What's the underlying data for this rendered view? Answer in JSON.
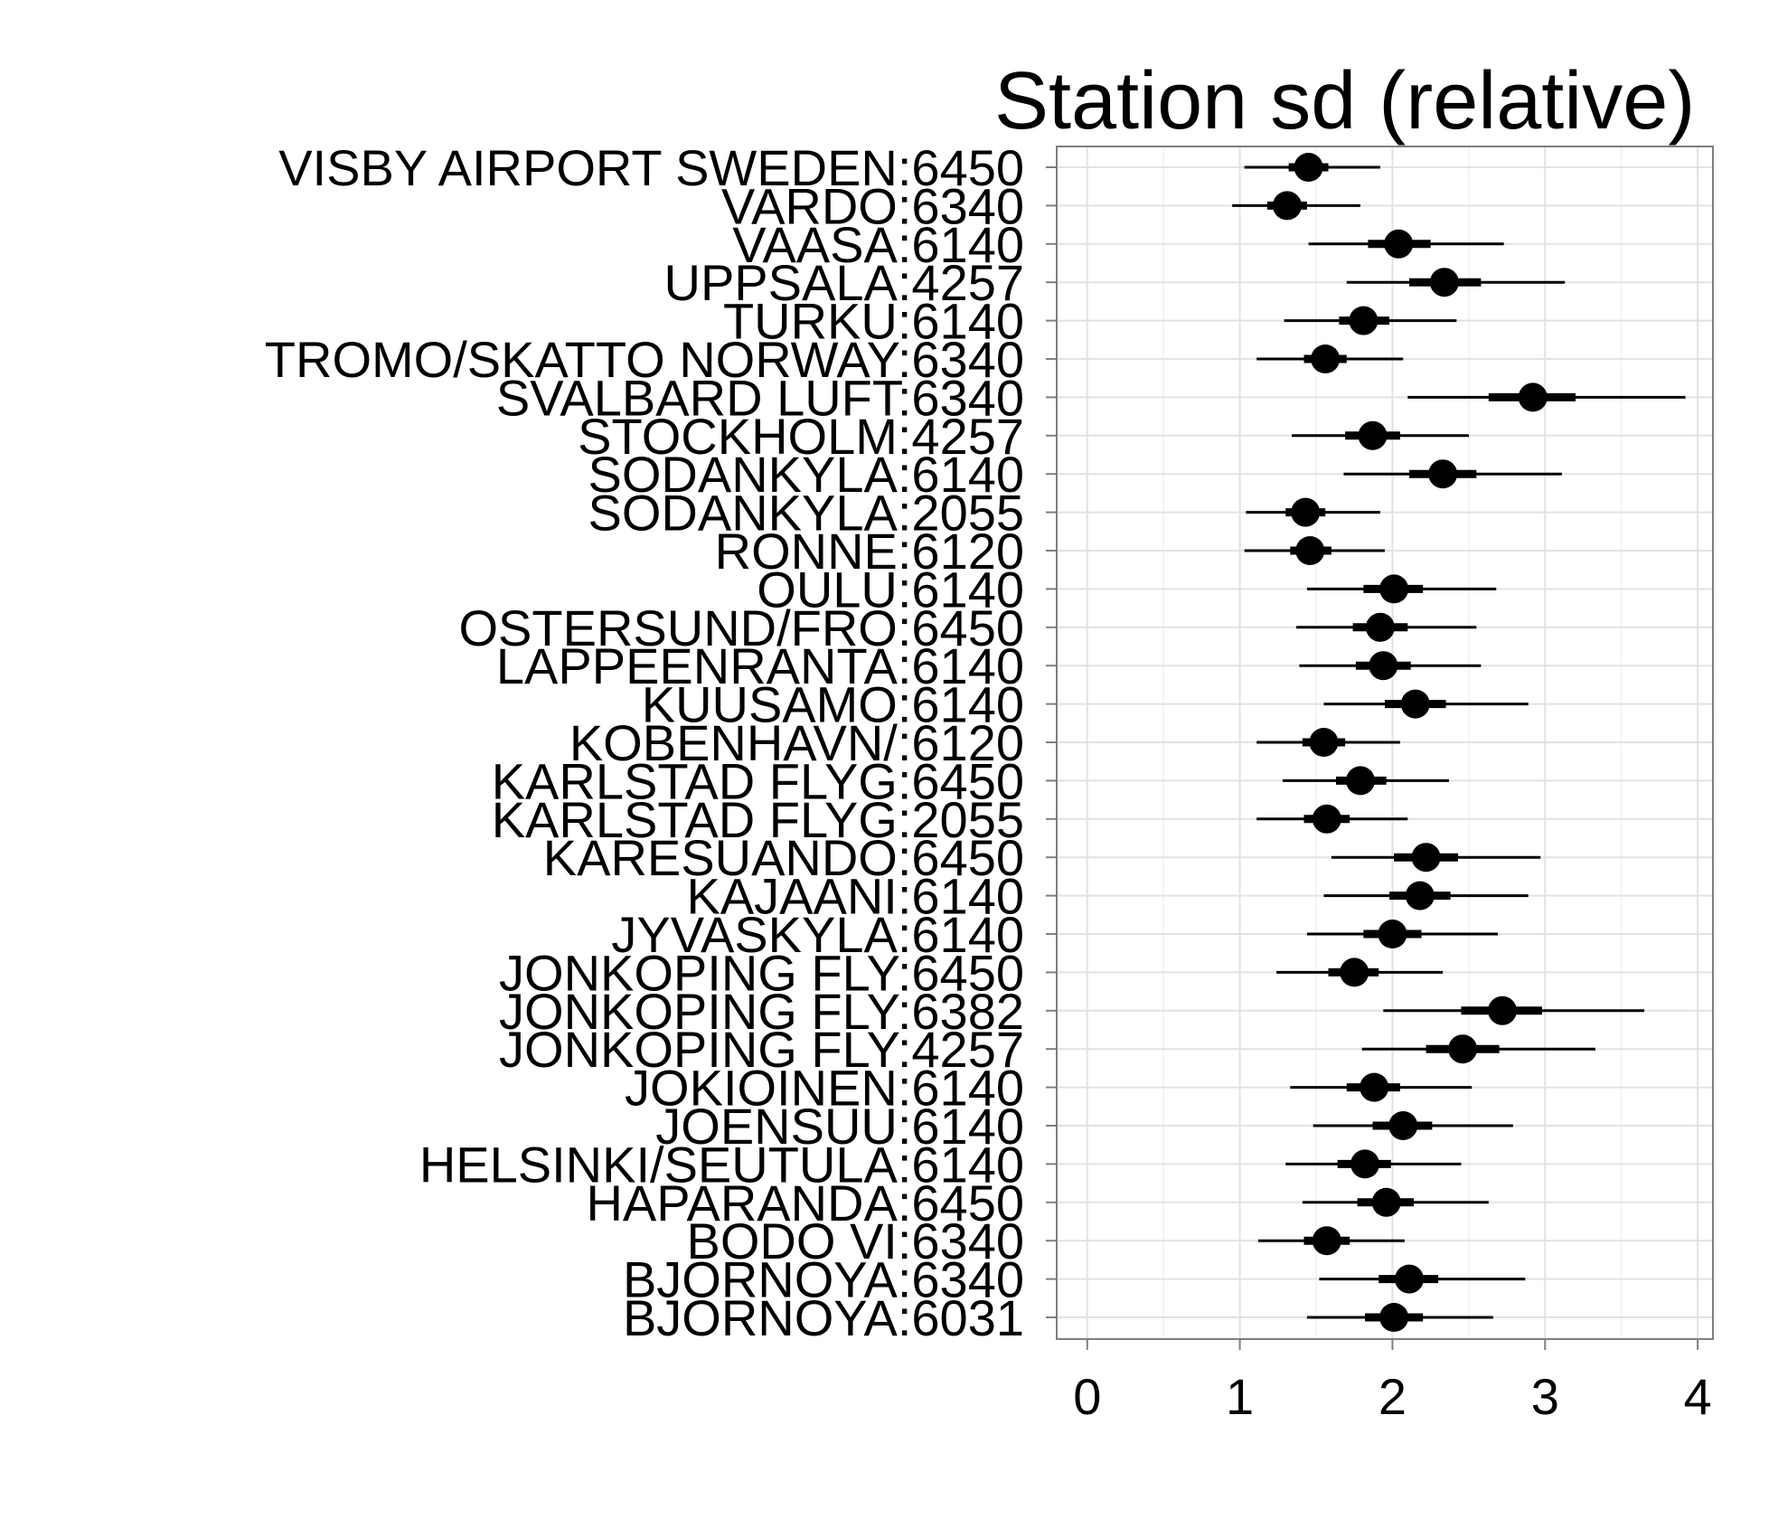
{
  "chart_data": {
    "type": "scatter",
    "title": "Station sd (relative)",
    "xlim": [
      -0.2,
      4.1
    ],
    "x_ticks": [
      "0",
      "1",
      "2",
      "3",
      "4"
    ],
    "grid": true,
    "categories": [
      "VISBY AIRPORT SWEDEN:6450",
      "VARDO:6340",
      "VAASA:6140",
      "UPPSALA:4257",
      "TURKU:6140",
      "TROMO/SKATTO NORWAY:6340",
      "SVALBARD LUFT:6340",
      "STOCKHOLM:4257",
      "SODANKYLA:6140",
      "SODANKYLA:2055",
      "RONNE:6120",
      "OULU:6140",
      "OSTERSUND/FRO:6450",
      "LAPPEENRANTA:6140",
      "KUUSAMO:6140",
      "KOBENHAVN/:6120",
      "KARLSTAD FLYG:6450",
      "KARLSTAD FLYG:2055",
      "KARESUANDO:6450",
      "KAJAANI:6140",
      "JYVASKYLA:6140",
      "JONKOPING FLY:6450",
      "JONKOPING FLY:6382",
      "JONKOPING FLY:4257",
      "JOKIOINEN:6140",
      "JOENSUU:6140",
      "HELSINKI/SEUTULA:6140",
      "HAPARANDA:6450",
      "BODO VI:6340",
      "BJORNOYA:6340",
      "BJORNOYA:6031"
    ],
    "series": [
      {
        "values": [
          {
            "est": 1.45,
            "inner": [
              1.32,
              1.58
            ],
            "outer": [
              1.03,
              1.92
            ]
          },
          {
            "est": 1.31,
            "inner": [
              1.18,
              1.44
            ],
            "outer": [
              0.95,
              1.79
            ]
          },
          {
            "est": 2.04,
            "inner": [
              1.84,
              2.25
            ],
            "outer": [
              1.45,
              2.73
            ]
          },
          {
            "est": 2.34,
            "inner": [
              2.11,
              2.58
            ],
            "outer": [
              1.7,
              3.13
            ]
          },
          {
            "est": 1.81,
            "inner": [
              1.65,
              1.98
            ],
            "outer": [
              1.29,
              2.42
            ]
          },
          {
            "est": 1.56,
            "inner": [
              1.42,
              1.7
            ],
            "outer": [
              1.11,
              2.07
            ]
          },
          {
            "est": 2.92,
            "inner": [
              2.63,
              3.2
            ],
            "outer": [
              2.1,
              3.92
            ]
          },
          {
            "est": 1.87,
            "inner": [
              1.69,
              2.05
            ],
            "outer": [
              1.34,
              2.5
            ]
          },
          {
            "est": 2.33,
            "inner": [
              2.11,
              2.55
            ],
            "outer": [
              1.68,
              3.11
            ]
          },
          {
            "est": 1.43,
            "inner": [
              1.3,
              1.56
            ],
            "outer": [
              1.04,
              1.92
            ]
          },
          {
            "est": 1.46,
            "inner": [
              1.33,
              1.6
            ],
            "outer": [
              1.03,
              1.95
            ]
          },
          {
            "est": 2.01,
            "inner": [
              1.81,
              2.2
            ],
            "outer": [
              1.44,
              2.68
            ]
          },
          {
            "est": 1.92,
            "inner": [
              1.74,
              2.1
            ],
            "outer": [
              1.37,
              2.55
            ]
          },
          {
            "est": 1.94,
            "inner": [
              1.76,
              2.12
            ],
            "outer": [
              1.39,
              2.58
            ]
          },
          {
            "est": 2.15,
            "inner": [
              1.95,
              2.35
            ],
            "outer": [
              1.55,
              2.89
            ]
          },
          {
            "est": 1.55,
            "inner": [
              1.41,
              1.69
            ],
            "outer": [
              1.11,
              2.05
            ]
          },
          {
            "est": 1.79,
            "inner": [
              1.63,
              1.96
            ],
            "outer": [
              1.28,
              2.37
            ]
          },
          {
            "est": 1.57,
            "inner": [
              1.42,
              1.72
            ],
            "outer": [
              1.11,
              2.1
            ]
          },
          {
            "est": 2.22,
            "inner": [
              2.01,
              2.43
            ],
            "outer": [
              1.6,
              2.97
            ]
          },
          {
            "est": 2.18,
            "inner": [
              1.98,
              2.38
            ],
            "outer": [
              1.55,
              2.89
            ]
          },
          {
            "est": 2.0,
            "inner": [
              1.81,
              2.19
            ],
            "outer": [
              1.44,
              2.69
            ]
          },
          {
            "est": 1.75,
            "inner": [
              1.58,
              1.91
            ],
            "outer": [
              1.24,
              2.33
            ]
          },
          {
            "est": 2.72,
            "inner": [
              2.45,
              2.98
            ],
            "outer": [
              1.94,
              3.65
            ]
          },
          {
            "est": 2.46,
            "inner": [
              2.22,
              2.7
            ],
            "outer": [
              1.8,
              3.33
            ]
          },
          {
            "est": 1.88,
            "inner": [
              1.7,
              2.05
            ],
            "outer": [
              1.33,
              2.52
            ]
          },
          {
            "est": 2.07,
            "inner": [
              1.87,
              2.26
            ],
            "outer": [
              1.48,
              2.79
            ]
          },
          {
            "est": 1.82,
            "inner": [
              1.64,
              1.99
            ],
            "outer": [
              1.3,
              2.45
            ]
          },
          {
            "est": 1.96,
            "inner": [
              1.77,
              2.14
            ],
            "outer": [
              1.41,
              2.63
            ]
          },
          {
            "est": 1.57,
            "inner": [
              1.42,
              1.72
            ],
            "outer": [
              1.12,
              2.08
            ]
          },
          {
            "est": 2.11,
            "inner": [
              1.91,
              2.3
            ],
            "outer": [
              1.52,
              2.87
            ]
          },
          {
            "est": 2.01,
            "inner": [
              1.82,
              2.2
            ],
            "outer": [
              1.44,
              2.66
            ]
          }
        ]
      }
    ]
  }
}
